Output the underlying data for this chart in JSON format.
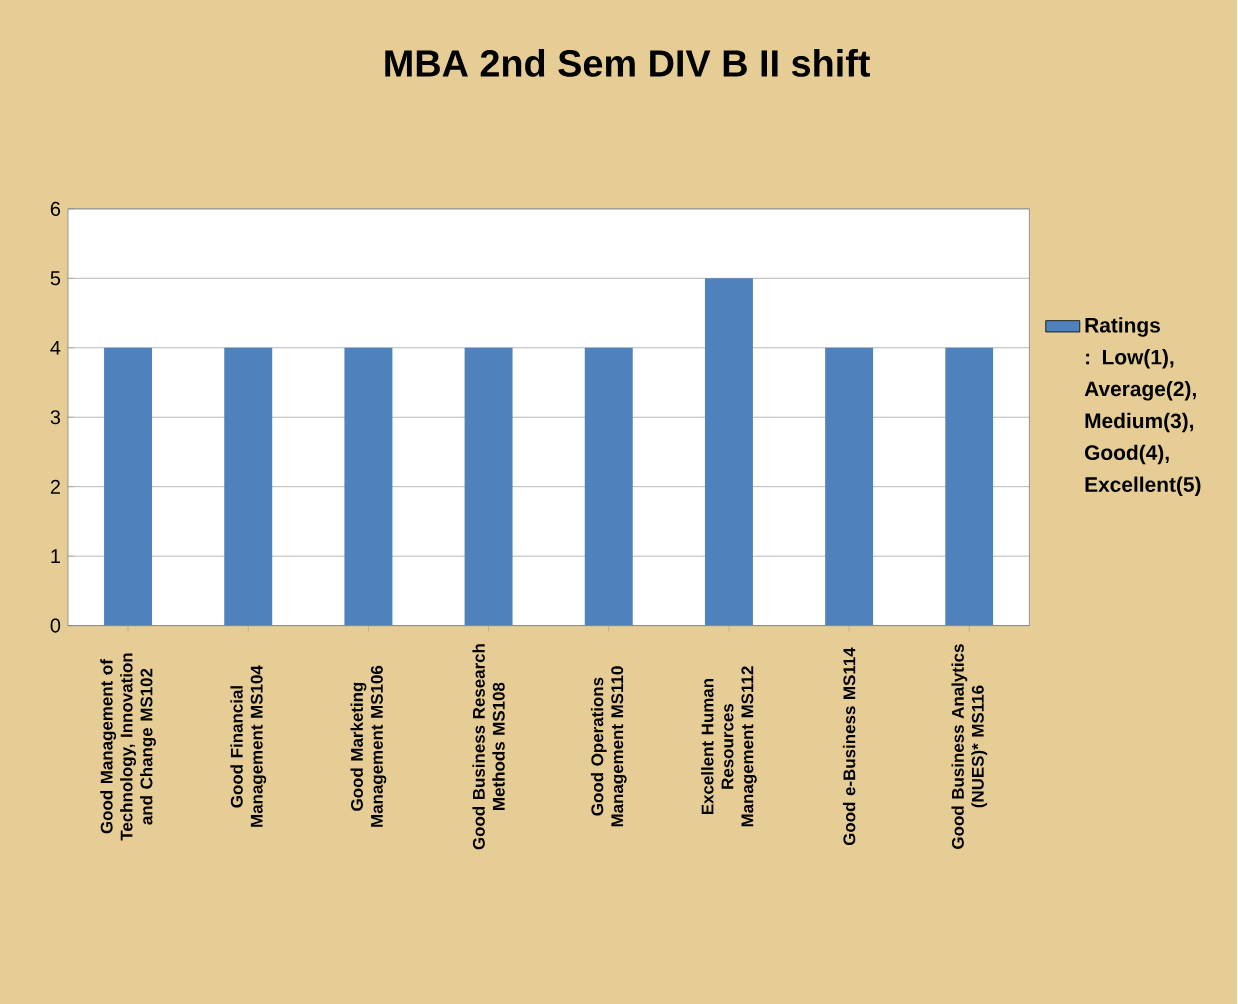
{
  "chart_data": {
    "type": "bar",
    "title": "MBA 2nd Sem DIV B II shift",
    "categories": [
      "Good Management of Technology, Innovation and Change MS102",
      "Good Financial Management MS104",
      "Good Marketing Management MS106",
      "Good Business Research Methods MS108",
      "Good Operations Management MS110",
      "Excellent Human Resources Management MS112",
      "Good e-Business MS114",
      "Good Business Analytics (NUES)* MS116"
    ],
    "series": [
      {
        "name": "Ratings : Low(1), Average(2), Medium(3), Good(4), Excellent(5)",
        "color": "#4f81bd",
        "values": [
          4,
          4,
          4,
          4,
          4,
          5,
          4,
          4
        ]
      }
    ],
    "ylim": [
      0,
      6
    ],
    "yticks": [
      0,
      1,
      2,
      3,
      4,
      5,
      6
    ],
    "grid": "y",
    "legend": "right"
  }
}
